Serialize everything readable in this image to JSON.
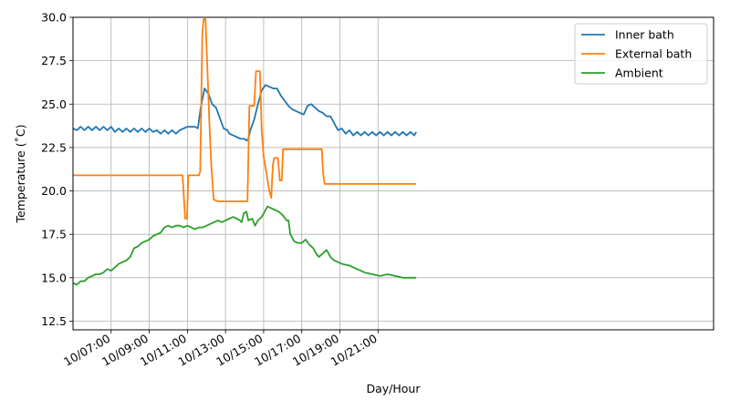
{
  "chart_data": {
    "type": "line",
    "xlabel": "Day/Hour",
    "ylabel": "Temperature ($^\\circ$C)",
    "ylabel_display": "Temperature (˚C)",
    "xlim_hours": [
      -14,
      19.6
    ],
    "ylim": [
      12,
      30
    ],
    "yticks": [
      12.5,
      15.0,
      17.5,
      20.0,
      22.5,
      25.0,
      27.5,
      30.0
    ],
    "ytick_labels": [
      "12.5",
      "15.0",
      "17.5",
      "20.0",
      "22.5",
      "25.0",
      "27.5",
      "30.0"
    ],
    "xticks": [
      {
        "hour": -12,
        "label": "10/07:00"
      },
      {
        "hour": -10,
        "label": "10/09:00"
      },
      {
        "hour": -8,
        "label": "10/11:00"
      },
      {
        "hour": -6,
        "label": "10/13:00"
      },
      {
        "hour": -4,
        "label": "10/15:00"
      },
      {
        "hour": -2,
        "label": "10/17:00"
      },
      {
        "hour": 0,
        "label": "10/19:00"
      },
      {
        "hour": 2,
        "label": "10/21:00"
      }
    ],
    "grid": true,
    "legend_position": "top-right",
    "series": [
      {
        "name": "Inner bath",
        "color": "#1f77b4",
        "points": [
          [
            -14.0,
            23.6
          ],
          [
            -13.8,
            23.5
          ],
          [
            -13.6,
            23.7
          ],
          [
            -13.4,
            23.5
          ],
          [
            -13.2,
            23.7
          ],
          [
            -13.0,
            23.5
          ],
          [
            -12.8,
            23.7
          ],
          [
            -12.6,
            23.5
          ],
          [
            -12.4,
            23.7
          ],
          [
            -12.2,
            23.5
          ],
          [
            -12.0,
            23.7
          ],
          [
            -11.8,
            23.4
          ],
          [
            -11.6,
            23.6
          ],
          [
            -11.4,
            23.4
          ],
          [
            -11.2,
            23.6
          ],
          [
            -11.0,
            23.4
          ],
          [
            -10.8,
            23.6
          ],
          [
            -10.6,
            23.4
          ],
          [
            -10.4,
            23.6
          ],
          [
            -10.2,
            23.4
          ],
          [
            -10.0,
            23.6
          ],
          [
            -9.8,
            23.4
          ],
          [
            -9.6,
            23.5
          ],
          [
            -9.4,
            23.3
          ],
          [
            -9.2,
            23.5
          ],
          [
            -9.0,
            23.3
          ],
          [
            -8.8,
            23.5
          ],
          [
            -8.6,
            23.3
          ],
          [
            -8.4,
            23.5
          ],
          [
            -8.2,
            23.6
          ],
          [
            -8.0,
            23.7
          ],
          [
            -7.6,
            23.7
          ],
          [
            -7.45,
            23.6
          ],
          [
            -7.3,
            24.8
          ],
          [
            -7.1,
            25.9
          ],
          [
            -6.9,
            25.6
          ],
          [
            -6.7,
            25.0
          ],
          [
            -6.5,
            24.8
          ],
          [
            -6.3,
            24.2
          ],
          [
            -6.1,
            23.6
          ],
          [
            -5.9,
            23.5
          ],
          [
            -5.8,
            23.3
          ],
          [
            -5.6,
            23.2
          ],
          [
            -5.4,
            23.1
          ],
          [
            -5.2,
            23.0
          ],
          [
            -5.0,
            23.0
          ],
          [
            -4.9,
            22.9
          ],
          [
            -4.8,
            23.0
          ],
          [
            -4.7,
            23.5
          ],
          [
            -4.5,
            24.1
          ],
          [
            -4.3,
            25.0
          ],
          [
            -4.1,
            25.8
          ],
          [
            -3.9,
            26.1
          ],
          [
            -3.7,
            26.0
          ],
          [
            -3.5,
            25.9
          ],
          [
            -3.3,
            25.9
          ],
          [
            -3.1,
            25.5
          ],
          [
            -2.9,
            25.2
          ],
          [
            -2.7,
            24.9
          ],
          [
            -2.5,
            24.7
          ],
          [
            -2.3,
            24.6
          ],
          [
            -2.1,
            24.5
          ],
          [
            -1.9,
            24.4
          ],
          [
            -1.7,
            24.9
          ],
          [
            -1.5,
            25.0
          ],
          [
            -1.3,
            24.8
          ],
          [
            -1.1,
            24.6
          ],
          [
            -0.9,
            24.5
          ],
          [
            -0.7,
            24.3
          ],
          [
            -0.5,
            24.3
          ],
          [
            -0.3,
            23.9
          ],
          [
            -0.1,
            23.5
          ],
          [
            0.1,
            23.6
          ],
          [
            0.3,
            23.3
          ],
          [
            0.5,
            23.5
          ],
          [
            0.7,
            23.2
          ],
          [
            0.9,
            23.4
          ],
          [
            1.1,
            23.2
          ],
          [
            1.3,
            23.4
          ],
          [
            1.5,
            23.2
          ],
          [
            1.7,
            23.4
          ],
          [
            1.9,
            23.2
          ],
          [
            2.1,
            23.4
          ],
          [
            2.3,
            23.2
          ],
          [
            2.5,
            23.4
          ],
          [
            2.7,
            23.2
          ],
          [
            2.9,
            23.4
          ],
          [
            3.1,
            23.2
          ],
          [
            3.3,
            23.4
          ],
          [
            3.5,
            23.2
          ],
          [
            3.7,
            23.4
          ],
          [
            3.9,
            23.2
          ],
          [
            4.0,
            23.4
          ]
        ]
      },
      {
        "name": "External bath",
        "color": "#ff7f0e",
        "points": [
          [
            -14.0,
            20.9
          ],
          [
            -12.0,
            20.9
          ],
          [
            -10.0,
            20.9
          ],
          [
            -8.4,
            20.9
          ],
          [
            -8.25,
            20.9
          ],
          [
            -8.12,
            18.4
          ],
          [
            -8.02,
            18.4
          ],
          [
            -7.95,
            20.9
          ],
          [
            -7.8,
            20.9
          ],
          [
            -7.4,
            20.9
          ],
          [
            -7.33,
            21.1
          ],
          [
            -7.22,
            29.0
          ],
          [
            -7.15,
            29.9
          ],
          [
            -7.05,
            29.9
          ],
          [
            -6.95,
            27.0
          ],
          [
            -6.85,
            24.0
          ],
          [
            -6.75,
            21.5
          ],
          [
            -6.62,
            19.5
          ],
          [
            -6.4,
            19.4
          ],
          [
            -5.8,
            19.4
          ],
          [
            -5.0,
            19.4
          ],
          [
            -4.85,
            19.4
          ],
          [
            -4.75,
            24.9
          ],
          [
            -4.5,
            24.9
          ],
          [
            -4.4,
            26.9
          ],
          [
            -4.2,
            26.9
          ],
          [
            -4.1,
            23.5
          ],
          [
            -4.0,
            22.0
          ],
          [
            -3.85,
            21.0
          ],
          [
            -3.7,
            20.0
          ],
          [
            -3.6,
            19.6
          ],
          [
            -3.52,
            21.5
          ],
          [
            -3.45,
            21.9
          ],
          [
            -3.25,
            21.9
          ],
          [
            -3.15,
            20.6
          ],
          [
            -3.05,
            20.6
          ],
          [
            -2.98,
            22.4
          ],
          [
            -2.0,
            22.4
          ],
          [
            -1.0,
            22.4
          ],
          [
            -0.95,
            22.4
          ],
          [
            -0.88,
            21.0
          ],
          [
            -0.8,
            20.4
          ],
          [
            0.0,
            20.4
          ],
          [
            1.0,
            20.4
          ],
          [
            2.0,
            20.4
          ],
          [
            3.0,
            20.4
          ],
          [
            4.0,
            20.4
          ]
        ]
      },
      {
        "name": "Ambient",
        "color": "#2ca02c",
        "points": [
          [
            -14.0,
            14.7
          ],
          [
            -13.8,
            14.6
          ],
          [
            -13.6,
            14.8
          ],
          [
            -13.4,
            14.8
          ],
          [
            -13.2,
            15.0
          ],
          [
            -13.0,
            15.1
          ],
          [
            -12.8,
            15.2
          ],
          [
            -12.6,
            15.2
          ],
          [
            -12.4,
            15.3
          ],
          [
            -12.2,
            15.5
          ],
          [
            -12.0,
            15.4
          ],
          [
            -11.8,
            15.6
          ],
          [
            -11.6,
            15.8
          ],
          [
            -11.4,
            15.9
          ],
          [
            -11.2,
            16.0
          ],
          [
            -11.0,
            16.2
          ],
          [
            -10.8,
            16.7
          ],
          [
            -10.6,
            16.8
          ],
          [
            -10.4,
            17.0
          ],
          [
            -10.2,
            17.1
          ],
          [
            -10.0,
            17.2
          ],
          [
            -9.8,
            17.4
          ],
          [
            -9.6,
            17.5
          ],
          [
            -9.4,
            17.6
          ],
          [
            -9.2,
            17.9
          ],
          [
            -9.0,
            18.0
          ],
          [
            -8.8,
            17.9
          ],
          [
            -8.6,
            18.0
          ],
          [
            -8.4,
            18.0
          ],
          [
            -8.2,
            17.9
          ],
          [
            -8.0,
            18.0
          ],
          [
            -7.8,
            17.9
          ],
          [
            -7.6,
            17.8
          ],
          [
            -7.4,
            17.9
          ],
          [
            -7.2,
            17.9
          ],
          [
            -7.0,
            18.0
          ],
          [
            -6.8,
            18.1
          ],
          [
            -6.6,
            18.2
          ],
          [
            -6.4,
            18.3
          ],
          [
            -6.2,
            18.2
          ],
          [
            -6.0,
            18.3
          ],
          [
            -5.8,
            18.4
          ],
          [
            -5.6,
            18.5
          ],
          [
            -5.4,
            18.4
          ],
          [
            -5.25,
            18.3
          ],
          [
            -5.15,
            18.2
          ],
          [
            -5.05,
            18.7
          ],
          [
            -4.9,
            18.8
          ],
          [
            -4.8,
            18.3
          ],
          [
            -4.6,
            18.4
          ],
          [
            -4.45,
            18.0
          ],
          [
            -4.3,
            18.3
          ],
          [
            -4.1,
            18.5
          ],
          [
            -3.95,
            18.8
          ],
          [
            -3.8,
            19.1
          ],
          [
            -3.6,
            19.0
          ],
          [
            -3.4,
            18.9
          ],
          [
            -3.2,
            18.8
          ],
          [
            -3.0,
            18.6
          ],
          [
            -2.8,
            18.3
          ],
          [
            -2.7,
            18.3
          ],
          [
            -2.6,
            17.5
          ],
          [
            -2.4,
            17.1
          ],
          [
            -2.2,
            17.0
          ],
          [
            -2.0,
            17.0
          ],
          [
            -1.8,
            17.2
          ],
          [
            -1.6,
            16.9
          ],
          [
            -1.4,
            16.7
          ],
          [
            -1.25,
            16.4
          ],
          [
            -1.1,
            16.2
          ],
          [
            -0.9,
            16.4
          ],
          [
            -0.7,
            16.6
          ],
          [
            -0.5,
            16.2
          ],
          [
            -0.3,
            16.0
          ],
          [
            -0.1,
            15.9
          ],
          [
            0.1,
            15.8
          ],
          [
            0.5,
            15.7
          ],
          [
            0.9,
            15.5
          ],
          [
            1.3,
            15.3
          ],
          [
            1.7,
            15.2
          ],
          [
            2.1,
            15.1
          ],
          [
            2.5,
            15.2
          ],
          [
            2.9,
            15.1
          ],
          [
            3.3,
            15.0
          ],
          [
            3.7,
            15.0
          ],
          [
            4.0,
            15.0
          ]
        ]
      }
    ]
  }
}
